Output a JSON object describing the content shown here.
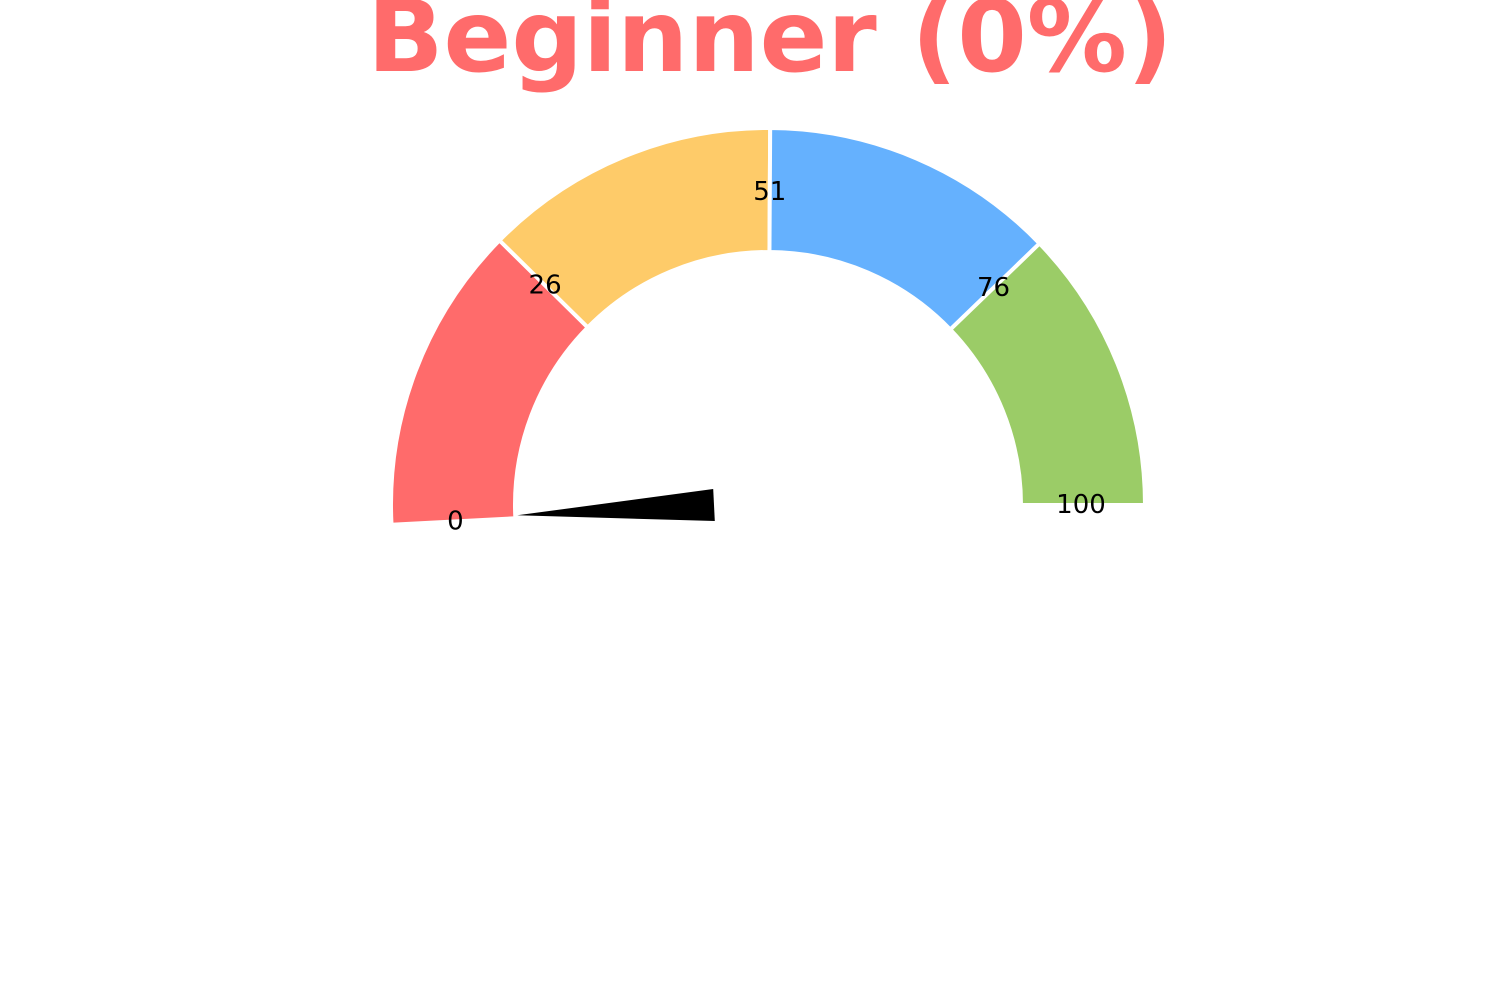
{
  "chart_data": {
    "type": "gauge",
    "title": "Beginner (0%)",
    "title_color": "#ff6b6b",
    "value": 0,
    "range": [
      0,
      100
    ],
    "bands": [
      {
        "from": 0,
        "to": 26,
        "color": "#ff6b6b"
      },
      {
        "from": 26,
        "to": 51,
        "color": "#fecb69"
      },
      {
        "from": 51,
        "to": 76,
        "color": "#65b1fe"
      },
      {
        "from": 76,
        "to": 100,
        "color": "#9bcc67"
      }
    ],
    "tick_labels": [
      "0",
      "26",
      "51",
      "76",
      "100"
    ],
    "tick_values": [
      0,
      26,
      51,
      76,
      100
    ],
    "needle_color": "#000000"
  }
}
